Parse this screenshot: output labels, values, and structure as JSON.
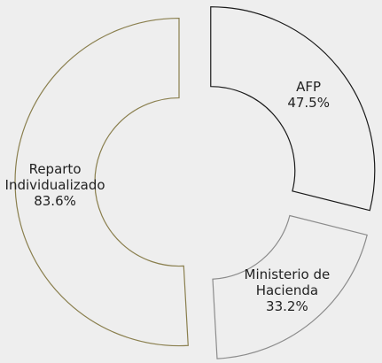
{
  "chart_data": {
    "type": "donut",
    "categories": [
      "AFP",
      "Ministerio de Hacienda",
      "Reparto Individualizado"
    ],
    "values": [
      47.5,
      33.2,
      83.6
    ],
    "value_labels": [
      "47.5%",
      "33.2%",
      "83.6%"
    ],
    "colors": [
      "#1a1a1a",
      "#8c8c8c",
      "#8a7f4e"
    ],
    "exploded": true
  }
}
